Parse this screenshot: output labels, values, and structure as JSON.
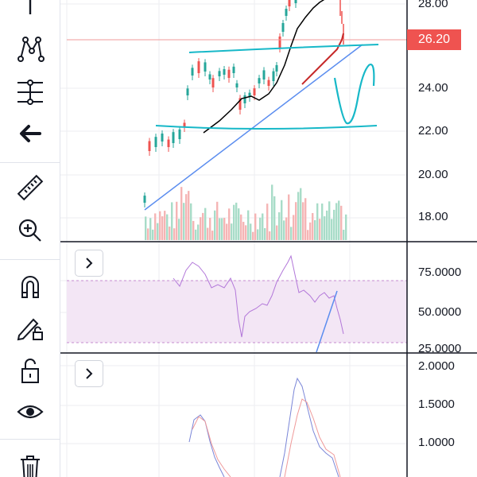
{
  "toolbar": {
    "tools": [
      {
        "name": "crosshair-tool",
        "icon": "crosshair-icon"
      },
      {
        "name": "pattern-tool",
        "icon": "xabcd-pattern-icon"
      },
      {
        "name": "prediction-tool",
        "icon": "long-position-icon"
      },
      {
        "name": "back-tool",
        "icon": "arrow-left-icon"
      },
      {
        "name": "measure-tool",
        "icon": "ruler-icon"
      },
      {
        "name": "zoom-tool",
        "icon": "zoom-in-icon"
      },
      {
        "name": "magnet-tool",
        "icon": "magnet-icon"
      },
      {
        "name": "lock-drawings-tool",
        "icon": "pencil-lock-icon"
      },
      {
        "name": "lock-all-tool",
        "icon": "unlock-icon"
      },
      {
        "name": "visibility-tool",
        "icon": "eye-icon"
      },
      {
        "name": "remove-drawings-tool",
        "icon": "trash-icon"
      }
    ]
  },
  "price_pane": {
    "last_price": "26.20",
    "ticks": [
      "28.00",
      "24.00",
      "22.00",
      "20.00",
      "18.00"
    ]
  },
  "rsi_pane": {
    "ticks": [
      "75.0000",
      "50.0000",
      "25.0000"
    ]
  },
  "third_pane": {
    "ticks": [
      "2.0000",
      "1.5000",
      "1.0000"
    ]
  },
  "colors": {
    "up": "#26a69a",
    "down": "#ef5350",
    "badge": "#ef5350",
    "trendline": "#5b8def",
    "channel": "#17b8c8",
    "rsi_line": "#b277d9",
    "rsi_band": "#f3e6f5",
    "ma_black": "#000000",
    "ma_red": "#c62828",
    "grid": "#eceef2"
  }
}
